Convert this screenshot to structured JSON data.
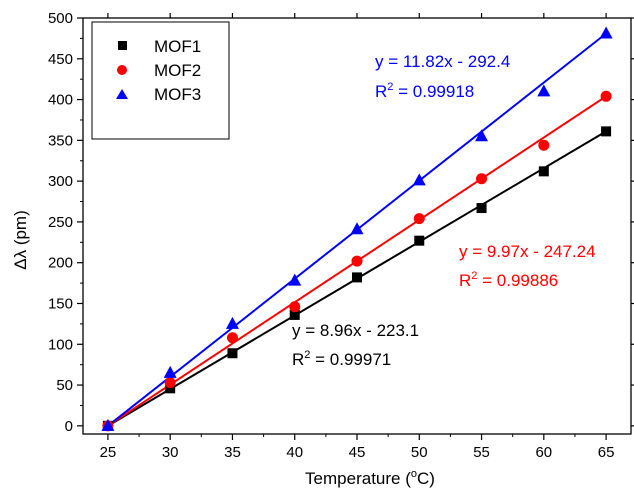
{
  "chart_data": {
    "type": "scatter",
    "xlabel_prefix": "Temperature (",
    "xlabel_sup": "o",
    "xlabel_suffix": "C)",
    "ylabel": "Δλ (pm)",
    "xlim": [
      23,
      67
    ],
    "ylim": [
      -10,
      500
    ],
    "xticks": [
      25,
      30,
      35,
      40,
      45,
      50,
      55,
      60,
      65
    ],
    "yticks": [
      0,
      50,
      100,
      150,
      200,
      250,
      300,
      350,
      400,
      450,
      500
    ],
    "grid": false,
    "legend_position": "top-left",
    "x": [
      25,
      30,
      35,
      40,
      45,
      50,
      55,
      60,
      65
    ],
    "series": [
      {
        "name": "MOF1",
        "marker": "square",
        "color": "#000000",
        "values": [
          0,
          46,
          89,
          136,
          182,
          227,
          267,
          312,
          361
        ],
        "fit": {
          "slope": 8.96,
          "intercept": -223.1
        },
        "equation": "y = 8.96x - 223.1",
        "r2_prefix": "R",
        "r2_sup": "2",
        "r2_suffix": " = 0.99971"
      },
      {
        "name": "MOF2",
        "marker": "circle",
        "color": "#ff0000",
        "values": [
          0,
          53,
          108,
          146,
          202,
          254,
          303,
          344,
          404
        ],
        "fit": {
          "slope": 9.97,
          "intercept": -247.24
        },
        "equation": "y = 9.97x - 247.24",
        "r2_prefix": "R",
        "r2_sup": "2",
        "r2_suffix": " = 0.99886"
      },
      {
        "name": "MOF3",
        "marker": "triangle",
        "color": "#0000ff",
        "values": [
          0,
          65,
          125,
          178,
          241,
          301,
          355,
          410,
          481
        ],
        "fit": {
          "slope": 11.82,
          "intercept": -292.4
        },
        "equation": "y = 11.82x - 292.4",
        "r2_prefix": "R",
        "r2_sup": "2",
        "r2_suffix": " = 0.99918"
      }
    ]
  }
}
